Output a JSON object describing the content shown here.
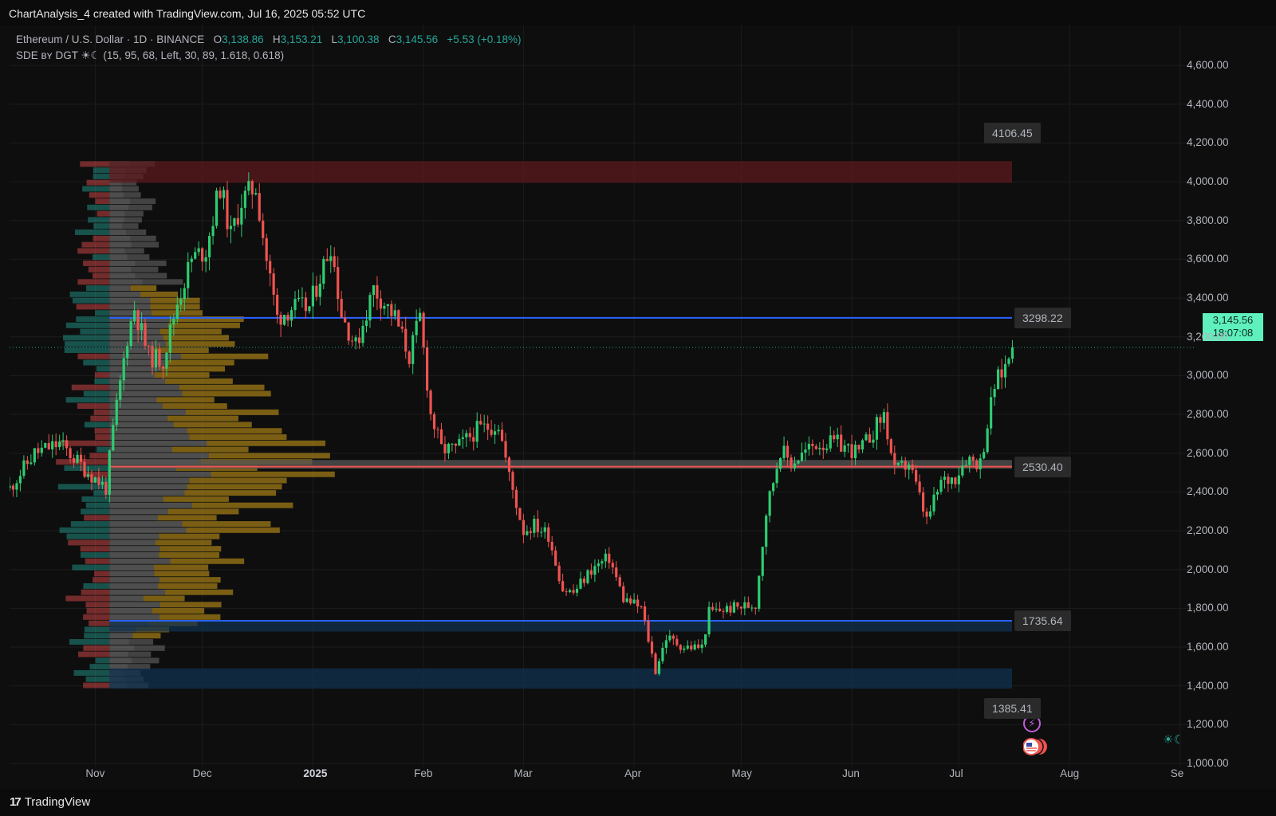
{
  "header": {
    "text": "ChartAnalysis_4 created with TradingView.com, Jul 16, 2025 05:52 UTC"
  },
  "legend": {
    "symbol": "Ethereum / U.S. Dollar · 1D · BINANCE",
    "o_key": "O",
    "o_val": "3,138.86",
    "h_key": "H",
    "h_val": "3,153.21",
    "l_key": "L",
    "l_val": "3,100.38",
    "c_key": "C",
    "c_val": "3,145.56",
    "change": "+5.53 (+0.18%)",
    "indicator": "SDE ʙʏ DGT ☀☾ (15, 95, 68, Left, 30, 89, 1.618, 0.618)"
  },
  "price_tag": {
    "price": "3,145.56",
    "countdown": "18:07:08"
  },
  "footer": {
    "brand": "TradingView"
  },
  "colors": {
    "up": "#26a69a",
    "up_bright": "#2ecc71",
    "down": "#ef5350",
    "level_line": "#2962ff",
    "resistance_zone": "#5c1a1e",
    "support_zone": "#12324f",
    "pivot_zone": "#555555",
    "volume_grey": "#9e9e9e",
    "volume_gold": "#d4a017"
  },
  "icons": [
    "bolt-icon",
    "us-flag-icon",
    "session-sun-moon-icon"
  ],
  "chart_data": {
    "type": "candlestick",
    "symbol": "ETH/USD",
    "interval": "1D",
    "exchange": "BINANCE",
    "ylim": [
      850,
      4680
    ],
    "y_ticks": [
      {
        "value": 4600,
        "label": "4,600.00"
      },
      {
        "value": 4400,
        "label": "4,400.00"
      },
      {
        "value": 4200,
        "label": "4,200.00"
      },
      {
        "value": 4000,
        "label": "4,000.00"
      },
      {
        "value": 3800,
        "label": "3,800.00"
      },
      {
        "value": 3600,
        "label": "3,600.00"
      },
      {
        "value": 3400,
        "label": "3,400.00"
      },
      {
        "value": 3200,
        "label": "3,200.00"
      },
      {
        "value": 3000,
        "label": "3,000.00"
      },
      {
        "value": 2800,
        "label": "2,800.00"
      },
      {
        "value": 2600,
        "label": "2,600.00"
      },
      {
        "value": 2400,
        "label": "2,400.00"
      },
      {
        "value": 2200,
        "label": "2,200.00"
      },
      {
        "value": 2000,
        "label": "2,000.00"
      },
      {
        "value": 1800,
        "label": "1,800.00"
      },
      {
        "value": 1600,
        "label": "1,600.00"
      },
      {
        "value": 1400,
        "label": "1,400.00"
      },
      {
        "value": 1200,
        "label": "1,200.00"
      },
      {
        "value": 1000,
        "label": "1,000.00"
      }
    ],
    "x_ticks": [
      {
        "date": "2024-11-01",
        "label": "Nov",
        "bold": false
      },
      {
        "date": "2024-12-01",
        "label": "Dec",
        "bold": false
      },
      {
        "date": "2025-01-01",
        "label": "2025",
        "bold": true
      },
      {
        "date": "2025-02-01",
        "label": "Feb",
        "bold": false
      },
      {
        "date": "2025-03-01",
        "label": "Mar",
        "bold": false
      },
      {
        "date": "2025-04-01",
        "label": "Apr",
        "bold": false
      },
      {
        "date": "2025-05-01",
        "label": "May",
        "bold": false
      },
      {
        "date": "2025-06-01",
        "label": "Jun",
        "bold": false
      },
      {
        "date": "2025-07-01",
        "label": "Jul",
        "bold": false
      },
      {
        "date": "2025-08-01",
        "label": "Aug",
        "bold": false
      },
      {
        "date": "2025-09-01",
        "label": "Se",
        "bold": false
      }
    ],
    "x_range": [
      "2024-10-08",
      "2025-09-01"
    ],
    "last_candle_date": "2025-07-16",
    "current_price": 3145.56,
    "levels": [
      {
        "value": 4106.45,
        "label": "4106.45",
        "type": "resistance-zone",
        "zone_low": 3995,
        "zone_high": 4106.45
      },
      {
        "value": 3298.22,
        "label": "3298.22",
        "type": "line"
      },
      {
        "value": 2530.4,
        "label": "2530.40",
        "type": "pivot-zone",
        "zone_low": 2520,
        "zone_high": 2565
      },
      {
        "value": 1735.64,
        "label": "1735.64",
        "type": "support-zone",
        "zone_low": 1680,
        "zone_high": 1735.64
      },
      {
        "value": 1385.41,
        "label": "1385.41",
        "type": "support-zone",
        "zone_low": 1385.41,
        "zone_high": 1490
      }
    ],
    "zone_start_date": "2024-11-05",
    "volume_profile": {
      "price_low": 1385,
      "price_high": 4106,
      "rows": 85,
      "poc_price": 2540
    },
    "price_anchors": [
      [
        "2024-10-08",
        2420
      ],
      [
        "2024-10-15",
        2600
      ],
      [
        "2024-10-22",
        2650
      ],
      [
        "2024-10-29",
        2520
      ],
      [
        "2024-11-04",
        2420
      ],
      [
        "2024-11-06",
        2720
      ],
      [
        "2024-11-10",
        3200
      ],
      [
        "2024-11-12",
        3350
      ],
      [
        "2024-11-16",
        3100
      ],
      [
        "2024-11-20",
        3080
      ],
      [
        "2024-11-24",
        3380
      ],
      [
        "2024-11-28",
        3600
      ],
      [
        "2024-12-02",
        3650
      ],
      [
        "2024-12-06",
        3980
      ],
      [
        "2024-12-09",
        3720
      ],
      [
        "2024-12-12",
        3900
      ],
      [
        "2024-12-16",
        3980
      ],
      [
        "2024-12-19",
        3600
      ],
      [
        "2024-12-22",
        3300
      ],
      [
        "2024-12-26",
        3350
      ],
      [
        "2024-12-31",
        3350
      ],
      [
        "2025-01-06",
        3680
      ],
      [
        "2025-01-09",
        3320
      ],
      [
        "2025-01-13",
        3150
      ],
      [
        "2025-01-18",
        3450
      ],
      [
        "2025-01-24",
        3300
      ],
      [
        "2025-01-28",
        3100
      ],
      [
        "2025-01-31",
        3300
      ],
      [
        "2025-02-03",
        2800
      ],
      [
        "2025-02-06",
        2620
      ],
      [
        "2025-02-10",
        2620
      ],
      [
        "2025-02-16",
        2720
      ],
      [
        "2025-02-22",
        2750
      ],
      [
        "2025-02-25",
        2480
      ],
      [
        "2025-03-01",
        2200
      ],
      [
        "2025-03-04",
        2230
      ],
      [
        "2025-03-08",
        2180
      ],
      [
        "2025-03-12",
        1900
      ],
      [
        "2025-03-15",
        1880
      ],
      [
        "2025-03-20",
        2000
      ],
      [
        "2025-03-25",
        2060
      ],
      [
        "2025-03-29",
        1850
      ],
      [
        "2025-04-03",
        1800
      ],
      [
        "2025-04-07",
        1480
      ],
      [
        "2025-04-10",
        1650
      ],
      [
        "2025-04-15",
        1600
      ],
      [
        "2025-04-20",
        1600
      ],
      [
        "2025-04-22",
        1780
      ],
      [
        "2025-04-28",
        1800
      ],
      [
        "2025-05-05",
        1820
      ],
      [
        "2025-05-08",
        2300
      ],
      [
        "2025-05-12",
        2620
      ],
      [
        "2025-05-15",
        2550
      ],
      [
        "2025-05-22",
        2650
      ],
      [
        "2025-05-28",
        2650
      ],
      [
        "2025-06-03",
        2600
      ],
      [
        "2025-06-10",
        2800
      ],
      [
        "2025-06-13",
        2500
      ],
      [
        "2025-06-17",
        2550
      ],
      [
        "2025-06-22",
        2250
      ],
      [
        "2025-06-26",
        2450
      ],
      [
        "2025-06-30",
        2480
      ],
      [
        "2025-07-03",
        2580
      ],
      [
        "2025-07-07",
        2550
      ],
      [
        "2025-07-09",
        2750
      ],
      [
        "2025-07-11",
        2950
      ],
      [
        "2025-07-14",
        3050
      ],
      [
        "2025-07-16",
        3145.56
      ]
    ]
  }
}
